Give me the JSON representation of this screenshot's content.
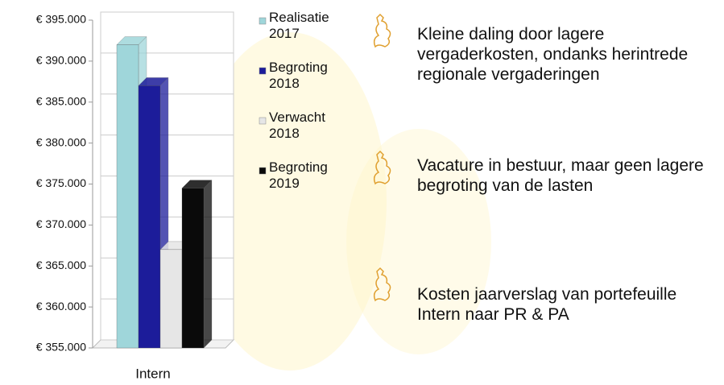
{
  "chart_data": {
    "type": "bar",
    "categories": [
      "Intern"
    ],
    "series": [
      {
        "name": "Realisatie 2017",
        "color": "#9fd6da",
        "values": [
          392000
        ]
      },
      {
        "name": "Begroting 2018",
        "color": "#1c1c9a",
        "values": [
          387000
        ]
      },
      {
        "name": "Verwacht 2018",
        "color": "#e6e6e6",
        "values": [
          367000
        ]
      },
      {
        "name": "Begroting 2019",
        "color": "#0a0a0a",
        "values": [
          374500
        ]
      }
    ],
    "ylim": [
      355000,
      395000
    ],
    "yticks": [
      {
        "value": 355000,
        "label": "€ 355.000"
      },
      {
        "value": 360000,
        "label": "€ 360.000"
      },
      {
        "value": 365000,
        "label": "€ 365.000"
      },
      {
        "value": 370000,
        "label": "€ 370.000"
      },
      {
        "value": 375000,
        "label": "€ 375.000"
      },
      {
        "value": 380000,
        "label": "€ 380.000"
      },
      {
        "value": 385000,
        "label": "€ 385.000"
      },
      {
        "value": 390000,
        "label": "€ 390.000"
      },
      {
        "value": 395000,
        "label": "€ 395.000"
      }
    ],
    "grid": true,
    "annotations": [
      "Kleine daling door lagere vergaderkosten, ondanks herintrede regionale vergaderingen",
      "Vacature in bestuur, maar geen lagere begroting van de lasten",
      "Kosten jaarverslag van portefeuille Intern naar PR & PA"
    ]
  }
}
